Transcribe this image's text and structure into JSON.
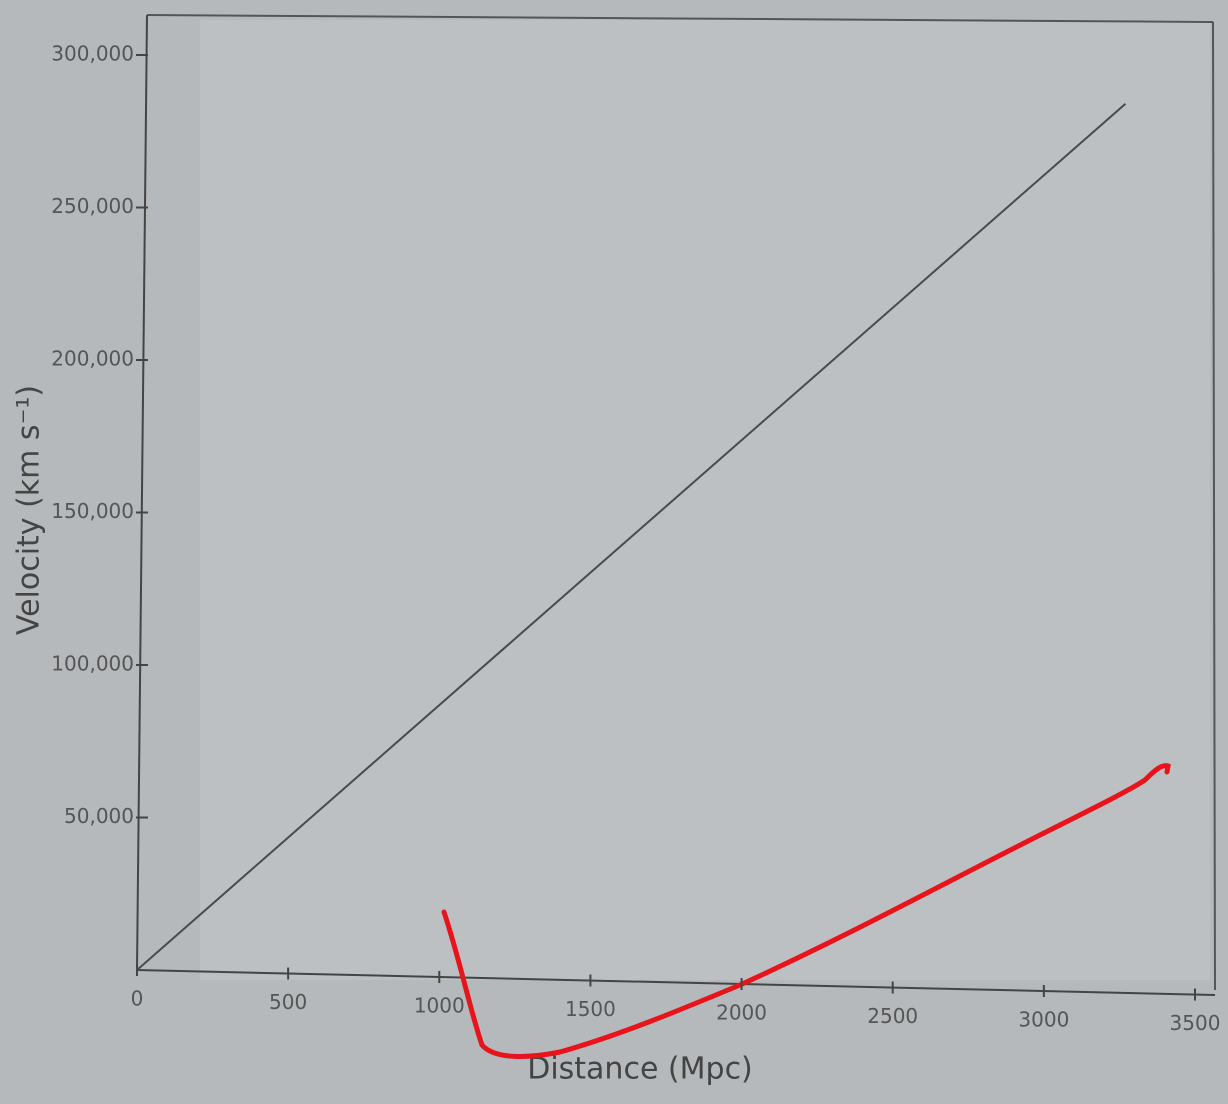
{
  "chart_data": {
    "type": "line",
    "x_label": "Distance (Mpc)",
    "y_label": "Velocity (km s⁻¹)",
    "series": [
      {
        "color": "#4a4a4a",
        "x": [
          0,
          3270
        ],
        "values": [
          0,
          284000
        ]
      }
    ],
    "xlim": [
      0,
      3500
    ],
    "xticks": [
      0,
      500,
      1000,
      1500,
      2000,
      2500,
      3000,
      3500
    ],
    "ylim": [
      0,
      300000
    ],
    "yticks": [
      {
        "value": 50000,
        "label": "50,000"
      },
      {
        "value": 100000,
        "label": "100,000"
      },
      {
        "value": 150000,
        "label": "150,000"
      },
      {
        "value": 200000,
        "label": "200,000"
      },
      {
        "value": 250000,
        "label": "250,000"
      },
      {
        "value": 300000,
        "label": "300,000"
      }
    ]
  }
}
